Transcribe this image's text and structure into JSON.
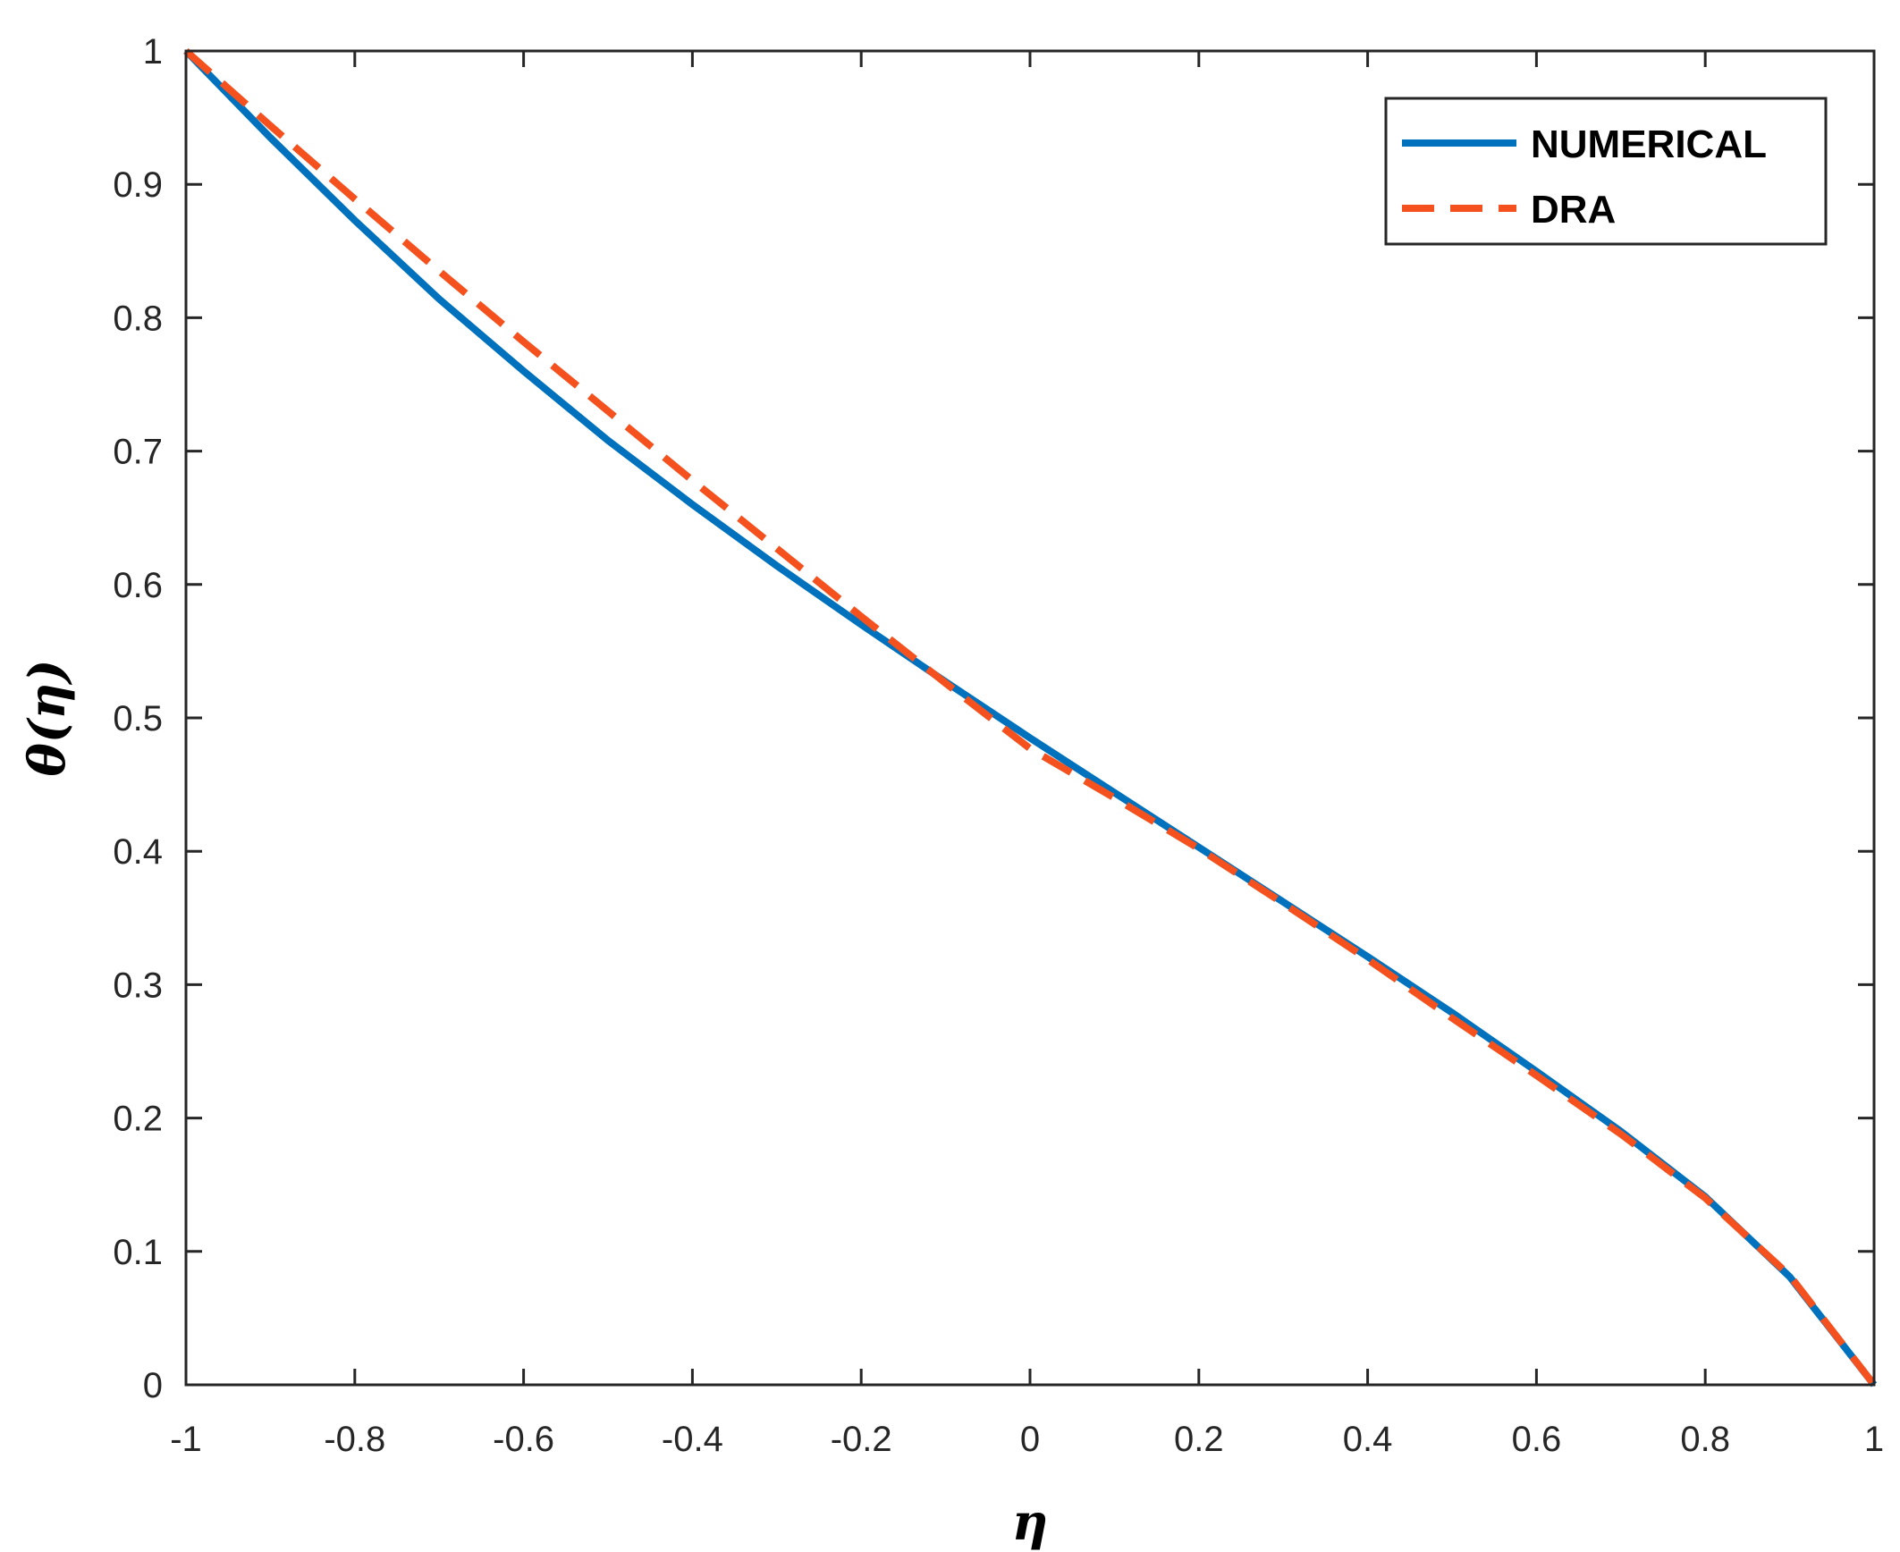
{
  "chart_data": {
    "type": "line",
    "title": "",
    "xlabel": "η",
    "ylabel": "θ(η)",
    "xlim": [
      -1,
      1
    ],
    "ylim": [
      0,
      1
    ],
    "xticks": [
      -1,
      -0.8,
      -0.6,
      -0.4,
      -0.2,
      0,
      0.2,
      0.4,
      0.6,
      0.8,
      1
    ],
    "xtick_labels": [
      "-1",
      "-0.8",
      "-0.6",
      "-0.4",
      "-0.2",
      "0",
      "0.2",
      "0.4",
      "0.6",
      "0.8",
      "1"
    ],
    "yticks": [
      0,
      0.1,
      0.2,
      0.3,
      0.4,
      0.5,
      0.6,
      0.7,
      0.8,
      0.9,
      1
    ],
    "ytick_labels": [
      "0",
      "0.1",
      "0.2",
      "0.3",
      "0.4",
      "0.5",
      "0.6",
      "0.7",
      "0.8",
      "0.9",
      "1"
    ],
    "grid": false,
    "legend_position": "top-right",
    "series": [
      {
        "name": "NUMERICAL",
        "color": "#0072BD",
        "line_style": "solid",
        "x": [
          -1,
          -0.9,
          -0.8,
          -0.7,
          -0.6,
          -0.5,
          -0.4,
          -0.3,
          -0.2,
          -0.1,
          0,
          0.1,
          0.2,
          0.3,
          0.4,
          0.5,
          0.6,
          0.7,
          0.8,
          0.9,
          1
        ],
        "y": [
          1.0,
          0.935,
          0.873,
          0.814,
          0.76,
          0.708,
          0.66,
          0.614,
          0.57,
          0.527,
          0.485,
          0.444,
          0.403,
          0.362,
          0.321,
          0.279,
          0.235,
          0.19,
          0.141,
          0.081,
          0.0
        ]
      },
      {
        "name": "DRA",
        "color": "#F4511E",
        "line_style": "dashed",
        "x": [
          -1,
          -0.9,
          -0.8,
          -0.7,
          -0.6,
          -0.5,
          -0.4,
          -0.3,
          -0.2,
          -0.1,
          0,
          0.1,
          0.2,
          0.3,
          0.4,
          0.5,
          0.6,
          0.7,
          0.8,
          0.9,
          1
        ],
        "y": [
          1.0,
          0.944,
          0.889,
          0.835,
          0.782,
          0.73,
          0.678,
          0.627,
          0.576,
          0.526,
          0.477,
          0.44,
          0.402,
          0.361,
          0.319,
          0.275,
          0.232,
          0.188,
          0.14,
          0.082,
          0.0
        ]
      }
    ]
  }
}
